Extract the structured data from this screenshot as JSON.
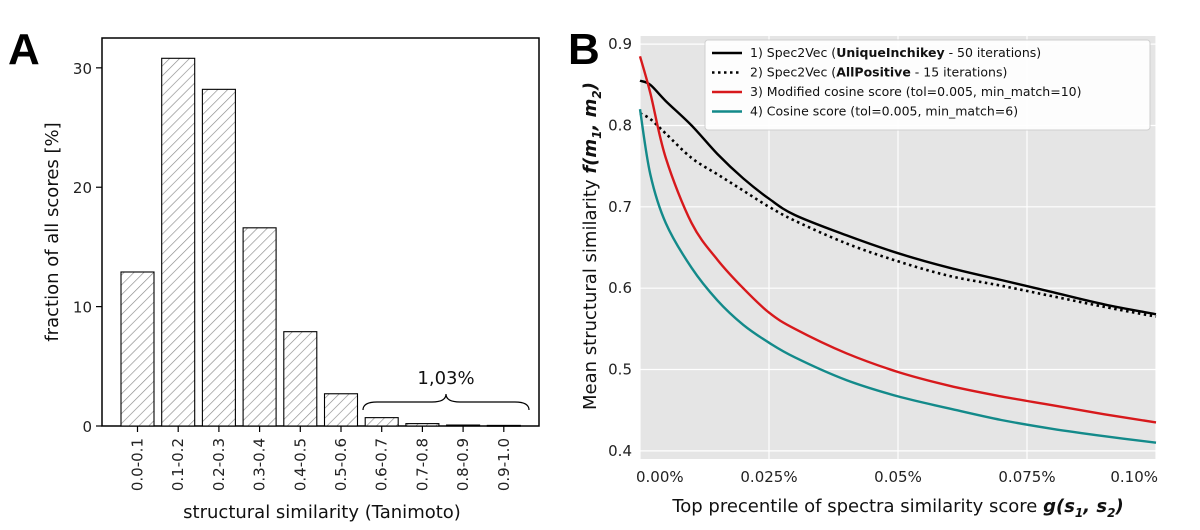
{
  "panel_a": {
    "letter": "A",
    "annotation": "1,03%",
    "chart_data": {
      "type": "bar",
      "title": "",
      "xlabel": "structural similarity (Tanimoto)",
      "ylabel": "fraction of all scores [%]",
      "categories": [
        "0.0-0.1",
        "0.1-0.2",
        "0.2-0.3",
        "0.3-0.4",
        "0.4-0.5",
        "0.5-0.6",
        "0.6-0.7",
        "0.7-0.8",
        "0.8-0.9",
        "0.9-1.0"
      ],
      "values": [
        12.9,
        30.8,
        28.2,
        16.6,
        7.9,
        2.7,
        0.7,
        0.2,
        0.08,
        0.05
      ],
      "ylim": [
        0,
        32.5
      ],
      "yticks": [
        0,
        10,
        20,
        30
      ],
      "grid": false
    }
  },
  "panel_b": {
    "letter": "B",
    "chart_data": {
      "type": "line",
      "title": "",
      "xlabel_plain": "Top precentile of spectra similarity score ",
      "xlabel_math": "g(s",
      "xlabel_sub1": "1",
      "xlabel_mid": ", s",
      "xlabel_sub2": "2",
      "xlabel_close": ")",
      "ylabel_plain": "Mean structural similarity ",
      "ylabel_math": "f(m",
      "ylabel_sub1": "1",
      "ylabel_mid": ", m",
      "ylabel_sub2": "2",
      "ylabel_close": ")",
      "xlim": [
        0,
        0.1
      ],
      "ylim": [
        0.39,
        0.91
      ],
      "xticks": [
        0,
        0.025,
        0.05,
        0.075,
        0.1
      ],
      "xtick_labels": [
        "0.00%",
        "0.025%",
        "0.05%",
        "0.075%",
        "0.10%"
      ],
      "yticks": [
        0.4,
        0.5,
        0.6,
        0.7,
        0.8,
        0.9
      ],
      "ytick_labels": [
        "0.4",
        "0.5",
        "0.6",
        "0.7",
        "0.8",
        "0.9"
      ],
      "grid": true,
      "legend_position": "top-right",
      "x": [
        0,
        0.002,
        0.005,
        0.01,
        0.015,
        0.02,
        0.025,
        0.03,
        0.04,
        0.05,
        0.06,
        0.07,
        0.08,
        0.09,
        0.1
      ],
      "series": [
        {
          "name": "Spec2Vec (UniqueInchikey - 50 iterations)",
          "legend_pre": "1) Spec2Vec (",
          "legend_bold": "UniqueInchikey",
          "legend_post": " - 50 iterations)",
          "color": "#000000",
          "style": "solid",
          "values": [
            0.855,
            0.85,
            0.83,
            0.8,
            0.765,
            0.735,
            0.71,
            0.69,
            0.665,
            0.643,
            0.625,
            0.61,
            0.595,
            0.58,
            0.568
          ]
        },
        {
          "name": "Spec2Vec (AllPositive - 15 iterations)",
          "legend_pre": "2) Spec2Vec (",
          "legend_bold": "AllPositive",
          "legend_post": " - 15 iterations)",
          "color": "#000000",
          "style": "dotted",
          "values": [
            0.815,
            0.808,
            0.79,
            0.76,
            0.74,
            0.72,
            0.7,
            0.683,
            0.655,
            0.633,
            0.615,
            0.603,
            0.59,
            0.577,
            0.565
          ]
        },
        {
          "name": "Modified cosine score (tol=0.005, min_match=10)",
          "legend_pre": "3) Modified cosine score (tol=0.005, min_match=10)",
          "legend_bold": "",
          "legend_post": "",
          "color": "#d7191c",
          "style": "solid",
          "values": [
            0.885,
            0.84,
            0.76,
            0.68,
            0.635,
            0.6,
            0.57,
            0.55,
            0.52,
            0.497,
            0.48,
            0.467,
            0.456,
            0.445,
            0.435
          ]
        },
        {
          "name": "Cosine score (tol=0.005, min_match=6)",
          "legend_pre": "4) Cosine score (tol=0.005, min_match=6)",
          "legend_bold": "",
          "legend_post": "",
          "color": "#138a8a",
          "style": "solid",
          "values": [
            0.82,
            0.74,
            0.68,
            0.625,
            0.585,
            0.555,
            0.533,
            0.515,
            0.487,
            0.467,
            0.452,
            0.438,
            0.427,
            0.418,
            0.41
          ]
        }
      ]
    }
  }
}
